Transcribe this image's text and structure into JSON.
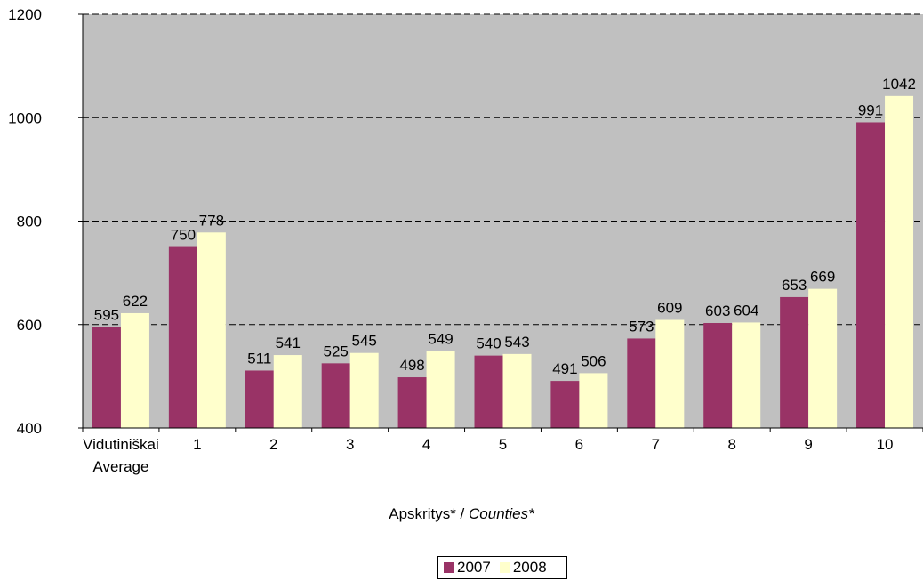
{
  "chart_data": {
    "type": "bar",
    "categories": [
      [
        "Vidutiniškai",
        "Average"
      ],
      [
        "1"
      ],
      [
        "2"
      ],
      [
        "3"
      ],
      [
        "4"
      ],
      [
        "5"
      ],
      [
        "6"
      ],
      [
        "7"
      ],
      [
        "8"
      ],
      [
        "9"
      ],
      [
        "10"
      ]
    ],
    "series": [
      {
        "name": "2007",
        "color": "#993366",
        "values": [
          595,
          750,
          511,
          525,
          498,
          540,
          491,
          573,
          603,
          653,
          991
        ]
      },
      {
        "name": "2008",
        "color": "#ffffcc",
        "values": [
          622,
          778,
          541,
          545,
          549,
          543,
          506,
          609,
          604,
          669,
          1042
        ]
      }
    ],
    "ylim": [
      400,
      1200
    ],
    "yticks": [
      400,
      600,
      800,
      1000,
      1200
    ],
    "xlabel": {
      "regular": "Apskritys* / ",
      "italic": "Counties*"
    },
    "plot_background": "#c0c0c0",
    "grid": "dashed horizontal",
    "legend_position": "bottom"
  }
}
